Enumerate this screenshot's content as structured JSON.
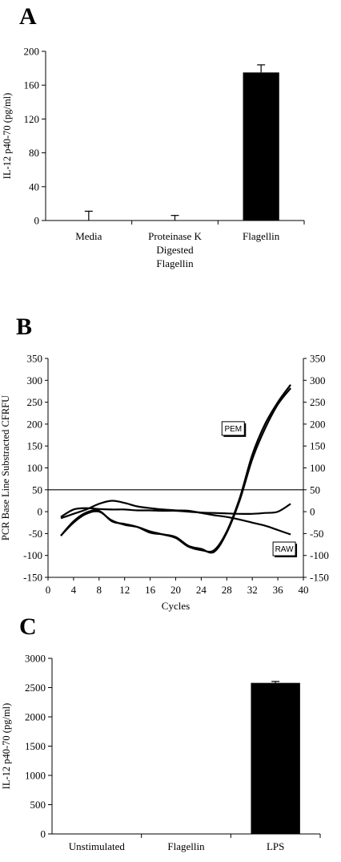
{
  "panels": {
    "a": {
      "letter": "A"
    },
    "b": {
      "letter": "B"
    },
    "c": {
      "letter": "C"
    }
  },
  "chart_data": [
    {
      "id": "a",
      "type": "bar",
      "title": "",
      "ylabel": "IL-12 p40-70 (pg/ml)",
      "xlabel": "",
      "ylim": [
        0,
        200
      ],
      "yticks": [
        "0",
        "40",
        "80",
        "120",
        "160",
        "200"
      ],
      "categories": [
        {
          "lines": [
            "Media"
          ]
        },
        {
          "lines": [
            "Proteinase K",
            "Digested",
            "Flagellin"
          ]
        },
        {
          "lines": [
            "Flagellin"
          ]
        }
      ],
      "values": [
        0,
        0,
        175
      ],
      "errors": [
        11,
        6,
        9
      ],
      "bar_color": "#000000"
    },
    {
      "id": "b",
      "type": "line",
      "title": "",
      "ylabel": "PCR Base Line Substracted CFRFU",
      "xlabel": "Cycles",
      "xlim": [
        0,
        40
      ],
      "ylim": [
        -150,
        350
      ],
      "xticks": [
        "0",
        "4",
        "8",
        "12",
        "16",
        "20",
        "24",
        "28",
        "32",
        "36",
        "40"
      ],
      "yticks": [
        "-150",
        "-100",
        "-50",
        "0",
        "50",
        "100",
        "150",
        "200",
        "250",
        "300",
        "350"
      ],
      "threshold": 50,
      "line_color": "#000000",
      "annotations": [
        {
          "text": "PEM",
          "x": 29,
          "y": 190
        },
        {
          "text": "RAW",
          "x": 37,
          "y": -85
        }
      ],
      "series": [
        {
          "x": [
            2,
            4,
            6,
            8,
            10,
            12,
            14,
            16,
            18,
            20,
            22,
            24,
            26,
            28,
            30,
            32,
            34,
            36,
            38
          ],
          "y": [
            -15,
            -5,
            5,
            18,
            25,
            20,
            12,
            8,
            5,
            3,
            2,
            -3,
            -8,
            -12,
            -18,
            -25,
            -32,
            -42,
            -52
          ]
        },
        {
          "x": [
            2,
            4,
            6,
            8,
            10,
            12,
            14,
            16,
            18,
            20,
            22,
            24,
            26,
            28,
            30,
            32,
            34,
            36,
            38
          ],
          "y": [
            -55,
            -25,
            -5,
            0,
            -20,
            -30,
            -35,
            -45,
            -52,
            -60,
            -80,
            -88,
            -88,
            -45,
            30,
            130,
            200,
            250,
            290
          ]
        },
        {
          "x": [
            2,
            4,
            6,
            8,
            10,
            12,
            14,
            16,
            18,
            20,
            22,
            24,
            26,
            28,
            30,
            32,
            34,
            36,
            38
          ],
          "y": [
            -55,
            -22,
            -2,
            2,
            -22,
            -28,
            -35,
            -48,
            -52,
            -58,
            -78,
            -85,
            -92,
            -48,
            25,
            120,
            190,
            245,
            282
          ]
        },
        {
          "x": [
            2,
            4,
            6,
            8,
            10,
            12,
            14,
            16,
            18,
            20,
            22,
            24,
            26,
            28,
            30,
            32,
            34,
            36,
            38
          ],
          "y": [
            -12,
            5,
            8,
            6,
            5,
            5,
            3,
            3,
            2,
            2,
            0,
            -2,
            -3,
            -4,
            -5,
            -5,
            -3,
            0,
            18
          ]
        }
      ]
    },
    {
      "id": "c",
      "type": "bar",
      "title": "",
      "ylabel": "IL-12 p40-70 (pg/ml)",
      "xlabel": "",
      "ylim": [
        0,
        3000
      ],
      "yticks": [
        "0",
        "500",
        "1000",
        "1500",
        "2000",
        "2500",
        "3000"
      ],
      "categories": [
        {
          "lines": [
            "Unstimulated"
          ]
        },
        {
          "lines": [
            "Flagellin"
          ]
        },
        {
          "lines": [
            "LPS"
          ]
        }
      ],
      "values": [
        0,
        5,
        2580
      ],
      "errors": [
        0,
        0,
        25
      ],
      "bar_color": "#000000"
    }
  ]
}
